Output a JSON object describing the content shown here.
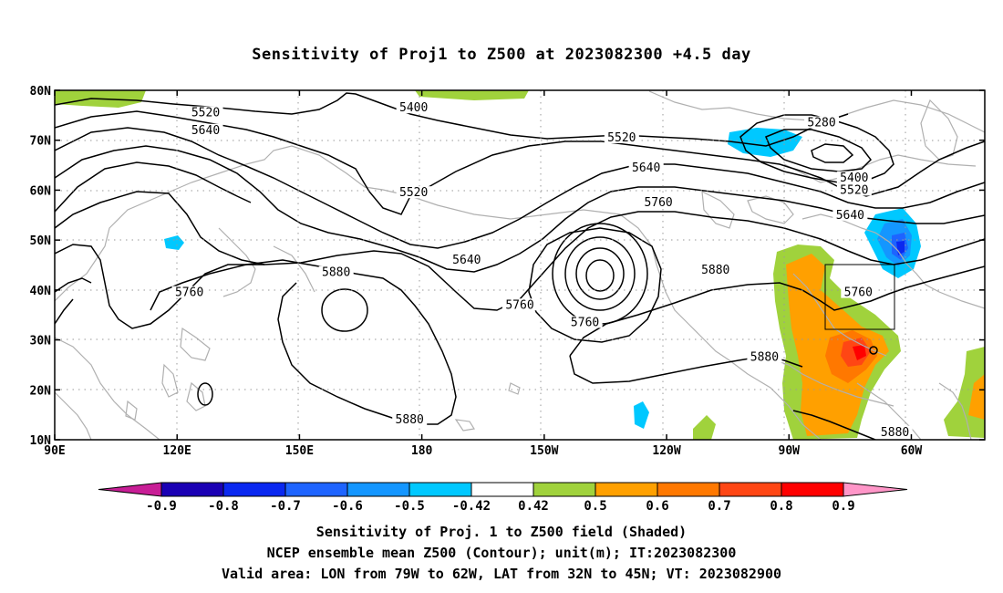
{
  "title": "Sensitivity of Proj1 to Z500 at 2023082300 +4.5 day",
  "lat_labels": [
    "80N",
    "70N",
    "60N",
    "50N",
    "40N",
    "30N",
    "20N",
    "10N"
  ],
  "lon_labels": [
    "90E",
    "120E",
    "150E",
    "180",
    "150W",
    "120W",
    "90W",
    "60W"
  ],
  "contour_labels": [
    {
      "text": "5520",
      "lon": 127,
      "lat": 75.5
    },
    {
      "text": "5400",
      "lon": 178,
      "lat": 76.5
    },
    {
      "text": "5640",
      "lon": 127,
      "lat": 72.0
    },
    {
      "text": "5520",
      "lon": -131,
      "lat": 70.5
    },
    {
      "text": "5280",
      "lon": -82,
      "lat": 73.5
    },
    {
      "text": "5640",
      "lon": -125,
      "lat": 64.5
    },
    {
      "text": "5400",
      "lon": -74,
      "lat": 62.5
    },
    {
      "text": "5520",
      "lon": -74,
      "lat": 60.0
    },
    {
      "text": "5520",
      "lon": 178,
      "lat": 59.5
    },
    {
      "text": "5760",
      "lon": -122,
      "lat": 57.5
    },
    {
      "text": "5640",
      "lon": -75,
      "lat": 55.0
    },
    {
      "text": "5640",
      "lon": -169,
      "lat": 46.0
    },
    {
      "text": "5880",
      "lon": 159,
      "lat": 43.5
    },
    {
      "text": "5880",
      "lon": -108,
      "lat": 44.0
    },
    {
      "text": "5760",
      "lon": 123,
      "lat": 39.5
    },
    {
      "text": "5760",
      "lon": -156,
      "lat": 37.0
    },
    {
      "text": "5760",
      "lon": -140,
      "lat": 33.5
    },
    {
      "text": "5760",
      "lon": -73,
      "lat": 39.5
    },
    {
      "text": "5880",
      "lon": -96,
      "lat": 26.5
    },
    {
      "text": "5880",
      "lon": 177,
      "lat": 14.0
    },
    {
      "text": "5880",
      "lon": -64,
      "lat": 11.5
    }
  ],
  "colorbar": {
    "tick_labels": [
      "-0.9",
      "-0.8",
      "-0.7",
      "-0.6",
      "-0.5",
      "-0.42",
      "0.42",
      "0.5",
      "0.6",
      "0.7",
      "0.8",
      "0.9"
    ],
    "colors": [
      "#1a00b4",
      "#0a28f0",
      "#1e64ff",
      "#1496ff",
      "#00c8ff",
      "#ffffff",
      "#a0d23c",
      "#ffa000",
      "#ff7800",
      "#ff4614",
      "#ff0000"
    ],
    "low_extend_color": "#c81e96",
    "high_extend_color": "#ff96c8"
  },
  "caption_lines": [
    "Sensitivity of Proj. 1 to Z500 field (Shaded)",
    "NCEP ensemble mean Z500 (Contour); unit(m); IT:2023082300",
    "Valid area: LON from 79W to 62W, LAT from 32N to 45N; VT: 2023082900"
  ],
  "valid_area": {
    "lon_west": -79,
    "lon_east": -62,
    "lat_south": 32,
    "lat_north": 45
  }
}
